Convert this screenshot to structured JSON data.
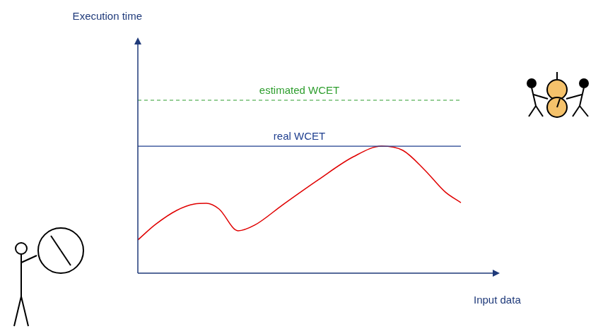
{
  "chart_data": {
    "type": "line",
    "x_label": "Input data",
    "y_label": "Execution time",
    "x": [
      0,
      4.9,
      10.8,
      15.7,
      19.0,
      22.5,
      27.8,
      32.4,
      40.2,
      50.0,
      59.8,
      67.6,
      73.5,
      79.4,
      85.3,
      89.6
    ],
    "series": [
      {
        "color": "#e00000",
        "values": [
          14.2,
          20.8,
          26.8,
          29.5,
          29.8,
          27.4,
          18.1,
          20.5,
          29.2,
          39.8,
          49.7,
          54.2,
          52.4,
          44.3,
          34.6,
          30.1
        ]
      }
    ],
    "lines": [
      {
        "label": "estimated WCET",
        "value": 73.8,
        "x": [
          0,
          89.6
        ],
        "color": "#2e9e2e",
        "line_style": "dashed"
      },
      {
        "label": "real WCET",
        "value": 54.2,
        "x": [
          0,
          89.6
        ],
        "color": "#1f3f8f",
        "line_style": "solid"
      }
    ],
    "xlim": [
      0,
      100
    ],
    "ylim": [
      0,
      100
    ],
    "xticks": [],
    "yticks": [],
    "tick_labels": false,
    "grid": false
  }
}
